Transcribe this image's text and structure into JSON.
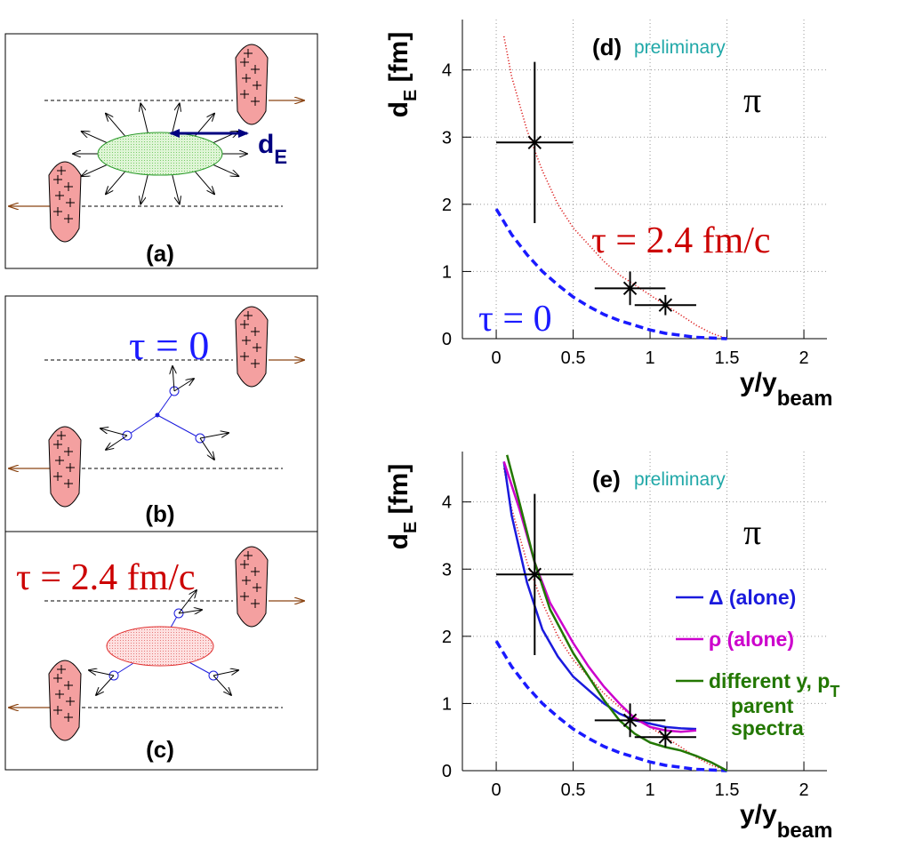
{
  "diagrams": {
    "a": {
      "label": "(a)",
      "distance_label": [
        "d",
        "E"
      ]
    },
    "b": {
      "label": "(b)",
      "time_label": "τ = 0"
    },
    "c": {
      "label": "(c)",
      "time_label": "τ = 2.4 fm/c"
    }
  },
  "chart_data": [
    {
      "type": "line",
      "panel_label": "(d)",
      "status": "preliminary",
      "particle": "π",
      "y_label": [
        "d",
        "E",
        " [fm]"
      ],
      "x_label": [
        "y/y",
        "beam"
      ],
      "xlim": [
        -0.22,
        2.15
      ],
      "ylim": [
        0,
        4.75
      ],
      "xticks": [
        0,
        0.5,
        1,
        1.5,
        2
      ],
      "yticks": [
        0,
        1,
        2,
        3,
        4
      ],
      "grid": true,
      "annotations": [
        {
          "text": "τ = 2.4 fm/c",
          "color": "#cc0000"
        },
        {
          "text": "τ = 0",
          "color": "#1a1aff"
        }
      ],
      "series": [
        {
          "style": "dotted",
          "color": "#dd2222",
          "x": [
            0.05,
            0.1,
            0.2,
            0.3,
            0.4,
            0.5,
            0.6,
            0.7,
            0.8,
            0.9,
            1.0,
            1.1,
            1.2,
            1.3,
            1.4,
            1.5
          ],
          "values": [
            4.5,
            3.9,
            3.1,
            2.5,
            2.0,
            1.65,
            1.4,
            1.15,
            0.95,
            0.8,
            0.65,
            0.5,
            0.35,
            0.2,
            0.08,
            0
          ]
        },
        {
          "style": "dashed",
          "color": "#1a1aff",
          "x": [
            0,
            0.1,
            0.2,
            0.3,
            0.4,
            0.5,
            0.6,
            0.7,
            0.8,
            0.9,
            1.0,
            1.1,
            1.2,
            1.3,
            1.4,
            1.5
          ],
          "values": [
            1.93,
            1.55,
            1.25,
            1.0,
            0.8,
            0.62,
            0.48,
            0.36,
            0.27,
            0.2,
            0.13,
            0.08,
            0.05,
            0.02,
            0.01,
            0
          ]
        },
        {
          "style": "errorbar",
          "color": "#000000",
          "x": [
            0.25,
            0.87,
            1.1
          ],
          "values": [
            2.92,
            0.75,
            0.5
          ],
          "xerr": [
            0.25,
            0.23,
            0.2
          ],
          "yerr": [
            1.2,
            0.25,
            0.15
          ]
        }
      ]
    },
    {
      "type": "line",
      "panel_label": "(e)",
      "status": "preliminary",
      "particle": "π",
      "y_label": [
        "d",
        "E",
        " [fm]"
      ],
      "x_label": [
        "y/y",
        "beam"
      ],
      "xlim": [
        -0.22,
        2.15
      ],
      "ylim": [
        0,
        4.75
      ],
      "xticks": [
        0,
        0.5,
        1,
        1.5,
        2
      ],
      "yticks": [
        0,
        1,
        2,
        3,
        4
      ],
      "grid": true,
      "series": [
        {
          "style": "dotted",
          "color": "#dd2222",
          "x": [
            0.05,
            0.1,
            0.2,
            0.3,
            0.4,
            0.5,
            0.6,
            0.7,
            0.8,
            0.9,
            1.0,
            1.1,
            1.2,
            1.3,
            1.4,
            1.5
          ],
          "values": [
            4.5,
            3.9,
            3.1,
            2.5,
            2.0,
            1.65,
            1.4,
            1.15,
            0.95,
            0.8,
            0.65,
            0.5,
            0.35,
            0.2,
            0.08,
            0
          ]
        },
        {
          "style": "dashed",
          "color": "#1a1aff",
          "x": [
            0,
            0.1,
            0.2,
            0.3,
            0.4,
            0.5,
            0.6,
            0.7,
            0.8,
            0.9,
            1.0,
            1.1,
            1.2,
            1.3,
            1.4,
            1.5
          ],
          "values": [
            1.93,
            1.55,
            1.25,
            1.0,
            0.8,
            0.62,
            0.48,
            0.36,
            0.27,
            0.2,
            0.13,
            0.08,
            0.05,
            0.02,
            0.01,
            0
          ]
        },
        {
          "name": "Δ (alone)",
          "style": "solid",
          "color": "#1a1add",
          "x": [
            0.05,
            0.1,
            0.2,
            0.3,
            0.4,
            0.5,
            0.6,
            0.7,
            0.8,
            0.9,
            1.0,
            1.1,
            1.2,
            1.3
          ],
          "values": [
            4.6,
            3.8,
            2.8,
            2.1,
            1.7,
            1.4,
            1.2,
            1.0,
            0.85,
            0.75,
            0.7,
            0.65,
            0.63,
            0.62
          ]
        },
        {
          "name": "ρ (alone)",
          "style": "solid",
          "color": "#cc00cc",
          "x": [
            0.05,
            0.15,
            0.25,
            0.35,
            0.5,
            0.6,
            0.7,
            0.8,
            0.9,
            1.0,
            1.1,
            1.2,
            1.3
          ],
          "values": [
            4.6,
            3.9,
            3.1,
            2.5,
            1.9,
            1.55,
            1.25,
            1.0,
            0.78,
            0.65,
            0.6,
            0.58,
            0.6
          ]
        },
        {
          "name": [
            "different y, p",
            "T",
            "parent",
            "spectra"
          ],
          "style": "solid",
          "color": "#227700",
          "x": [
            0.07,
            0.15,
            0.25,
            0.35,
            0.5,
            0.6,
            0.7,
            0.8,
            0.9,
            1.0,
            1.1,
            1.2,
            1.3,
            1.4,
            1.5
          ],
          "values": [
            4.7,
            4.0,
            3.1,
            2.4,
            1.75,
            1.4,
            1.05,
            0.75,
            0.55,
            0.42,
            0.35,
            0.3,
            0.22,
            0.12,
            0
          ]
        },
        {
          "style": "errorbar",
          "color": "#000000",
          "x": [
            0.25,
            0.87,
            1.1
          ],
          "values": [
            2.92,
            0.75,
            0.5
          ],
          "xerr": [
            0.25,
            0.23,
            0.2
          ],
          "yerr": [
            1.2,
            0.25,
            0.15
          ]
        }
      ]
    }
  ]
}
